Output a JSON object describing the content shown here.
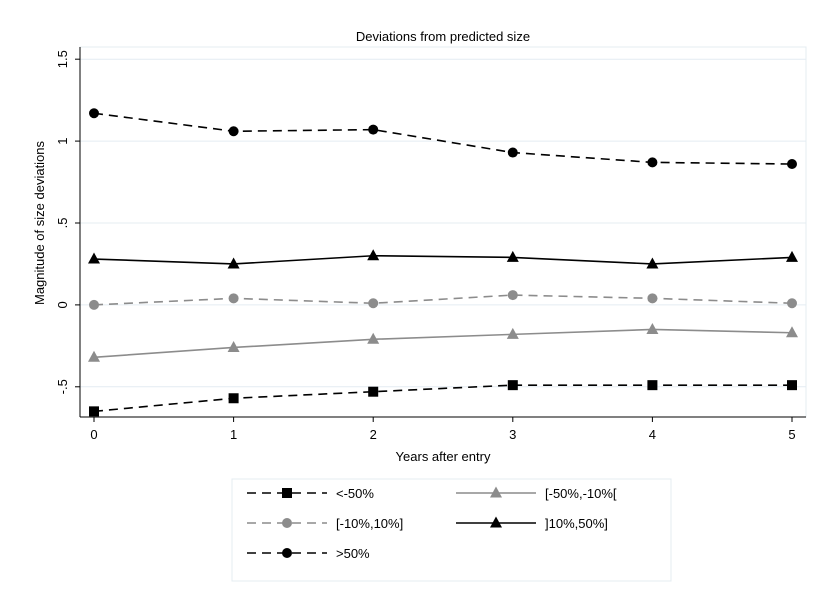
{
  "chart_data": {
    "type": "line",
    "title": "Deviations from predicted size",
    "xlabel": "Years after entry",
    "ylabel": "Magnitude of size deviations",
    "x": [
      0,
      1,
      2,
      3,
      4,
      5
    ],
    "xlim": [
      0,
      5
    ],
    "ylim": [
      -0.66,
      1.55
    ],
    "xticks": [
      "0",
      "1",
      "2",
      "3",
      "4",
      "5"
    ],
    "yticks": [
      {
        "value": -0.5,
        "label": "-.5"
      },
      {
        "value": 0,
        "label": "0"
      },
      {
        "value": 0.5,
        "label": ".5"
      },
      {
        "value": 1,
        "label": "1"
      },
      {
        "value": 1.5,
        "label": "1.5"
      }
    ],
    "grid": "horizontal",
    "legend_position": "bottom",
    "series": [
      {
        "name": "<-50%",
        "values": [
          -0.65,
          -0.57,
          -0.53,
          -0.49,
          -0.49,
          -0.49
        ],
        "color": "#000000",
        "dash": "dashed",
        "marker": "square"
      },
      {
        "name": "[-50%,-10%[",
        "values": [
          -0.32,
          -0.26,
          -0.21,
          -0.18,
          -0.15,
          -0.17
        ],
        "color": "#8c8c8c",
        "dash": "solid",
        "marker": "triangle"
      },
      {
        "name": "[-10%,10%]",
        "values": [
          0.0,
          0.04,
          0.01,
          0.06,
          0.04,
          0.01
        ],
        "color": "#8c8c8c",
        "dash": "dashed",
        "marker": "circle"
      },
      {
        "name": "]10%,50%]",
        "values": [
          0.28,
          0.25,
          0.3,
          0.29,
          0.25,
          0.29
        ],
        "color": "#000000",
        "dash": "solid",
        "marker": "triangle"
      },
      {
        "name": ">50%",
        "values": [
          1.17,
          1.06,
          1.07,
          0.93,
          0.87,
          0.86
        ],
        "color": "#000000",
        "dash": "dashed",
        "marker": "circle"
      }
    ]
  }
}
